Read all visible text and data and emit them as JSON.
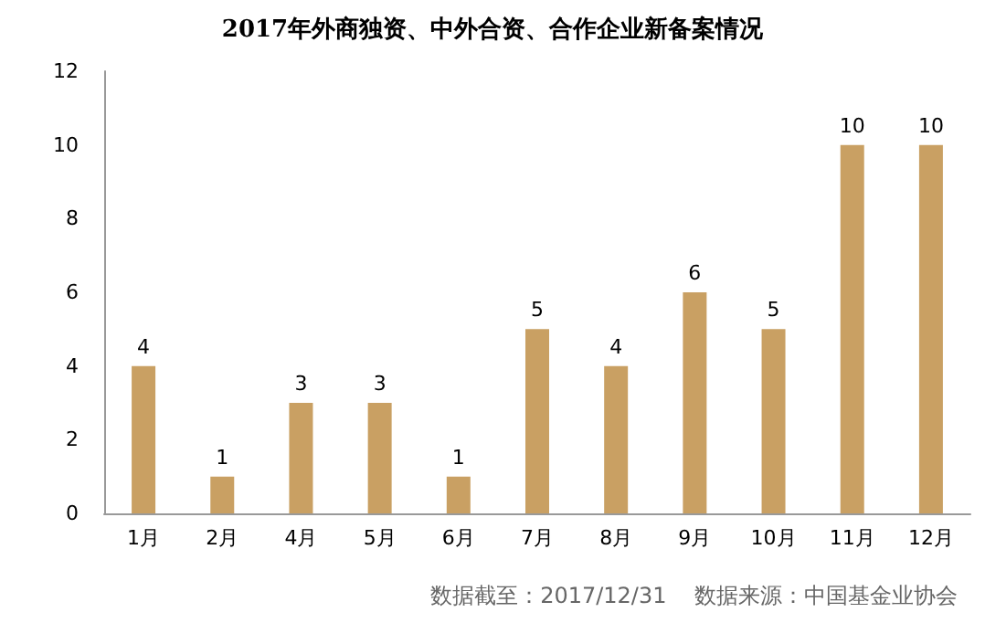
{
  "chart_data": {
    "type": "bar",
    "title": "2017年外商独资、中外合资、合作企业新备案情况",
    "categories": [
      "1月",
      "2月",
      "4月",
      "5月",
      "6月",
      "7月",
      "8月",
      "9月",
      "10月",
      "11月",
      "12月"
    ],
    "values": [
      4,
      1,
      3,
      3,
      1,
      5,
      4,
      6,
      5,
      10,
      10
    ],
    "color": "#c9a063",
    "ylim": [
      0,
      12
    ],
    "yticks": [
      0,
      2,
      4,
      6,
      8,
      10,
      12
    ],
    "grid": false,
    "data_labels": true,
    "annotations": [
      "数据截至：2017/12/31    数据来源：中国基金业协会"
    ]
  }
}
